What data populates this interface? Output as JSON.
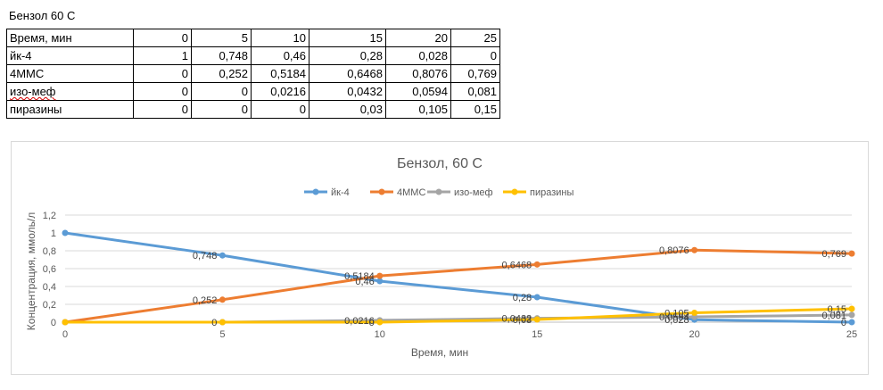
{
  "sheet": {
    "title": "Бензол 60 С",
    "table": {
      "header_label": "Время, мин",
      "header_values": [
        "0",
        "5",
        "10",
        "15",
        "20",
        "25"
      ],
      "rows": [
        {
          "label": "йк-4",
          "values": [
            "1",
            "0,748",
            "0,46",
            "0,28",
            "0,028",
            "0"
          ]
        },
        {
          "label": "4ММС",
          "values": [
            "0",
            "0,252",
            "0,5184",
            "0,6468",
            "0,8076",
            "0,769"
          ]
        },
        {
          "label": "изо-меф",
          "values": [
            "0",
            "0",
            "0,0216",
            "0,0432",
            "0,0594",
            "0,081"
          ]
        },
        {
          "label": "пиразины",
          "values": [
            "0",
            "0",
            "0",
            "0,03",
            "0,105",
            "0,15"
          ]
        }
      ]
    }
  },
  "chart_data": {
    "type": "line",
    "title": "Бензол, 60 С",
    "xlabel": "Время, мин",
    "ylabel": "Концентрация, ммоль/л",
    "x": [
      0,
      5,
      10,
      15,
      20,
      25
    ],
    "xticks": [
      "0",
      "5",
      "10",
      "15",
      "20",
      "25"
    ],
    "ylim": [
      0,
      1.2
    ],
    "yticks": [
      "0",
      "0,2",
      "0,4",
      "0,6",
      "0,8",
      "1",
      "1,2"
    ],
    "grid": "horizontal",
    "legend_position": "top",
    "series": [
      {
        "name": "йк-4",
        "color": "#5b9bd5",
        "values": [
          1,
          0.748,
          0.46,
          0.28,
          0.028,
          0
        ],
        "labels": [
          "",
          "0,748",
          "0,46",
          "0,28",
          "0,028",
          "0"
        ]
      },
      {
        "name": "4ММС",
        "color": "#ed7d31",
        "values": [
          0,
          0.252,
          0.5184,
          0.6468,
          0.8076,
          0.769
        ],
        "labels": [
          "",
          "0,252",
          "0,5184",
          "0,6468",
          "0,8076",
          "0,769"
        ]
      },
      {
        "name": "изо-меф",
        "color": "#a5a5a5",
        "values": [
          0,
          0,
          0.0216,
          0.0432,
          0.0594,
          0.081
        ],
        "labels": [
          "",
          "0",
          "0,0216",
          "0,0432",
          "0,0594",
          "0,081"
        ]
      },
      {
        "name": "пиразины",
        "color": "#ffc000",
        "values": [
          0,
          0,
          0,
          0.03,
          0.105,
          0.15
        ],
        "labels": [
          "",
          "",
          "0",
          "0,03",
          "0,105",
          "0,15"
        ]
      }
    ]
  }
}
